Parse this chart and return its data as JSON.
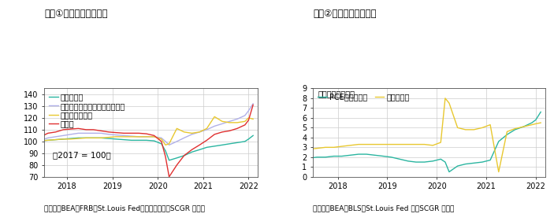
{
  "chart1": {
    "title": "図表①　需給の経済指標",
    "source": "（出所：BEA、FRB、St.Louis Fed、米商務省よりSCGR 作成）",
    "ylabel_text": "（2017 = 100）",
    "ylim": [
      70,
      145
    ],
    "yticks": [
      70,
      80,
      90,
      100,
      110,
      120,
      130,
      140
    ],
    "series": {
      "mining": {
        "label": "鉱工業生産",
        "color": "#2ab5a0",
        "data_x": [
          2017.25,
          2017.42,
          2017.58,
          2017.75,
          2017.92,
          2018.08,
          2018.25,
          2018.42,
          2018.58,
          2018.75,
          2018.92,
          2019.08,
          2019.25,
          2019.42,
          2019.58,
          2019.75,
          2019.92,
          2020.08,
          2020.17,
          2020.25,
          2020.42,
          2020.58,
          2020.75,
          2020.92,
          2021.08,
          2021.25,
          2021.42,
          2021.58,
          2021.75,
          2021.92,
          2022.0,
          2022.1
        ],
        "data_y": [
          100,
          100.5,
          101,
          101.5,
          102,
          102.5,
          103,
          103,
          103,
          103,
          102.5,
          102,
          101.5,
          101,
          101,
          101,
          100.5,
          98,
          92,
          84,
          86,
          88,
          91,
          93,
          95,
          96,
          97,
          98,
          99,
          100,
          102,
          105
        ]
      },
      "capgoods": {
        "label": "非国防資本財出荷（除航空機）",
        "color": "#b0b0e8",
        "data_x": [
          2017.25,
          2017.42,
          2017.58,
          2017.75,
          2017.92,
          2018.08,
          2018.25,
          2018.42,
          2018.58,
          2018.75,
          2018.92,
          2019.08,
          2019.25,
          2019.42,
          2019.58,
          2019.75,
          2019.92,
          2020.08,
          2020.17,
          2020.25,
          2020.42,
          2020.58,
          2020.75,
          2020.92,
          2021.08,
          2021.25,
          2021.42,
          2021.58,
          2021.75,
          2021.92,
          2022.0,
          2022.1
        ],
        "data_y": [
          100,
          101,
          103,
          104,
          105,
          106,
          107,
          107,
          107,
          107,
          106,
          105.5,
          105,
          104.5,
          104,
          104,
          104,
          103,
          100,
          97,
          100,
          103,
          106,
          108,
          110,
          113,
          115,
          117,
          119,
          122,
          126,
          132
        ]
      },
      "retail": {
        "label": "実質小売売上高",
        "color": "#e8c830",
        "data_x": [
          2017.25,
          2017.42,
          2017.58,
          2017.75,
          2017.92,
          2018.08,
          2018.25,
          2018.42,
          2018.58,
          2018.75,
          2018.92,
          2019.08,
          2019.25,
          2019.42,
          2019.58,
          2019.75,
          2019.92,
          2020.08,
          2020.17,
          2020.25,
          2020.42,
          2020.58,
          2020.75,
          2020.92,
          2021.08,
          2021.25,
          2021.42,
          2021.58,
          2021.75,
          2021.92,
          2022.0,
          2022.1
        ],
        "data_y": [
          100,
          100.5,
          101,
          101.5,
          102,
          102,
          102.5,
          103,
          103,
          103,
          103.5,
          104,
          104,
          104,
          104,
          104,
          104,
          102,
          97,
          98,
          111,
          108,
          107,
          108,
          111,
          121,
          117,
          116,
          116,
          117,
          120,
          119
        ]
      },
      "exports": {
        "label": "輸出額",
        "color": "#e03030",
        "data_x": [
          2017.25,
          2017.42,
          2017.58,
          2017.75,
          2017.92,
          2018.08,
          2018.25,
          2018.42,
          2018.58,
          2018.75,
          2018.92,
          2019.08,
          2019.25,
          2019.42,
          2019.58,
          2019.75,
          2019.92,
          2020.08,
          2020.17,
          2020.25,
          2020.42,
          2020.58,
          2020.75,
          2020.92,
          2021.08,
          2021.25,
          2021.42,
          2021.58,
          2021.75,
          2021.92,
          2022.0,
          2022.1
        ],
        "data_y": [
          100,
          104,
          107,
          108,
          110,
          110.5,
          111,
          110,
          110,
          109,
          108,
          107.5,
          107,
          107,
          107,
          106.5,
          105,
          100,
          87,
          70,
          80,
          88,
          93,
          97,
          101,
          106,
          108,
          109,
          111,
          114,
          118,
          131
        ]
      }
    }
  },
  "chart2": {
    "title": "図表②　物価・雇用指標",
    "source": "（出所：BEA、BLS、St.Louis Fed よりSCGR 作成）",
    "ylabel_text": "（前年同月比％）",
    "ylim": [
      0,
      9
    ],
    "yticks": [
      0,
      1,
      2,
      3,
      4,
      5,
      6,
      7,
      8,
      9
    ],
    "series": {
      "pce": {
        "label": "PCEデフレータ",
        "color": "#2ab5a0",
        "data_x": [
          2017.25,
          2017.42,
          2017.58,
          2017.75,
          2017.92,
          2018.08,
          2018.25,
          2018.42,
          2018.58,
          2018.75,
          2018.92,
          2019.08,
          2019.25,
          2019.42,
          2019.58,
          2019.75,
          2019.92,
          2020.08,
          2020.17,
          2020.25,
          2020.42,
          2020.58,
          2020.75,
          2020.92,
          2021.08,
          2021.25,
          2021.42,
          2021.58,
          2021.75,
          2021.92,
          2022.0,
          2022.1
        ],
        "data_y": [
          1.9,
          1.9,
          2.0,
          2.0,
          2.1,
          2.1,
          2.2,
          2.3,
          2.3,
          2.2,
          2.1,
          2.0,
          1.8,
          1.6,
          1.5,
          1.5,
          1.6,
          1.8,
          1.5,
          0.5,
          1.1,
          1.3,
          1.4,
          1.5,
          1.7,
          3.6,
          4.3,
          4.8,
          5.1,
          5.5,
          5.8,
          6.6
        ]
      },
      "wages": {
        "label": "賃金上昇率",
        "color": "#e8c830",
        "data_x": [
          2017.25,
          2017.42,
          2017.58,
          2017.75,
          2017.92,
          2018.08,
          2018.25,
          2018.42,
          2018.58,
          2018.75,
          2018.92,
          2019.08,
          2019.25,
          2019.42,
          2019.58,
          2019.75,
          2019.92,
          2020.08,
          2020.17,
          2020.25,
          2020.42,
          2020.58,
          2020.75,
          2020.92,
          2021.08,
          2021.25,
          2021.42,
          2021.58,
          2021.75,
          2021.92,
          2022.0,
          2022.1
        ],
        "data_y": [
          2.8,
          2.8,
          2.9,
          3.0,
          3.0,
          3.1,
          3.2,
          3.3,
          3.3,
          3.3,
          3.3,
          3.3,
          3.3,
          3.3,
          3.3,
          3.3,
          3.2,
          3.5,
          8.0,
          7.5,
          5.0,
          4.8,
          4.8,
          5.0,
          5.3,
          0.5,
          4.6,
          4.9,
          5.1,
          5.3,
          5.4,
          5.5
        ]
      }
    }
  },
  "bg_color": "#ffffff",
  "grid_color": "#cccccc",
  "tick_fontsize": 7,
  "label_fontsize": 7.5,
  "title_fontsize": 8.5,
  "source_fontsize": 6.5,
  "legend_fontsize": 7,
  "xticks": [
    2018.0,
    2019.0,
    2020.0,
    2021.0,
    2022.0
  ],
  "xtick_labels": [
    "2018",
    "2019",
    "2020",
    "2021",
    "2022"
  ]
}
